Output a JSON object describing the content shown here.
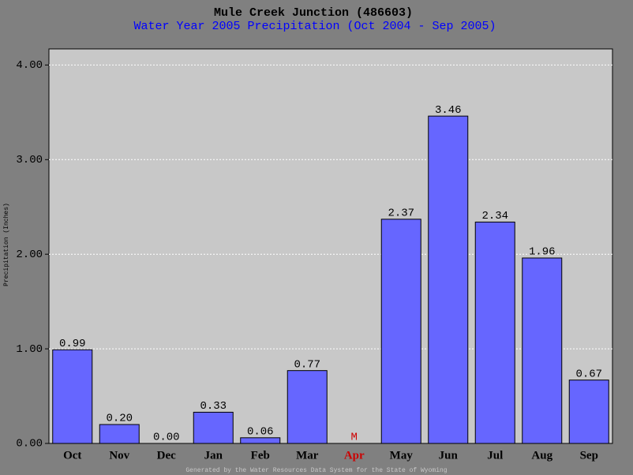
{
  "chart_data": {
    "type": "bar",
    "title": "Mule Creek Junction (486603)",
    "subtitle": "Water Year 2005 Precipitation (Oct 2004 - Sep 2005)",
    "y_label": "Precipitation (Inches)",
    "footer": "Generated by the Water Resources Data System for the State of Wyoming",
    "categories": [
      "Oct",
      "Nov",
      "Dec",
      "Jan",
      "Feb",
      "Mar",
      "Apr",
      "May",
      "Jun",
      "Jul",
      "Aug",
      "Sep"
    ],
    "values": [
      0.99,
      0.2,
      0,
      0.33,
      0.06,
      0.77,
      null,
      2.37,
      3.46,
      2.34,
      1.96,
      0.67
    ],
    "value_labels": [
      "0.99",
      "0.20",
      "0.00",
      "0.33",
      "0.06",
      "0.77",
      "M",
      "2.37",
      "3.46",
      "2.34",
      "1.96",
      "0.67"
    ],
    "color": "#6666ff",
    "missing_color": "#cc0000",
    "ylim": [
      0,
      4.17
    ],
    "yticks": [
      {
        "value": 0,
        "label": "0.00"
      },
      {
        "value": 1,
        "label": "1.00"
      },
      {
        "value": 2,
        "label": "2.00"
      },
      {
        "value": 3,
        "label": "3.00"
      },
      {
        "value": 4,
        "label": "4.00"
      }
    ],
    "grid": true
  }
}
